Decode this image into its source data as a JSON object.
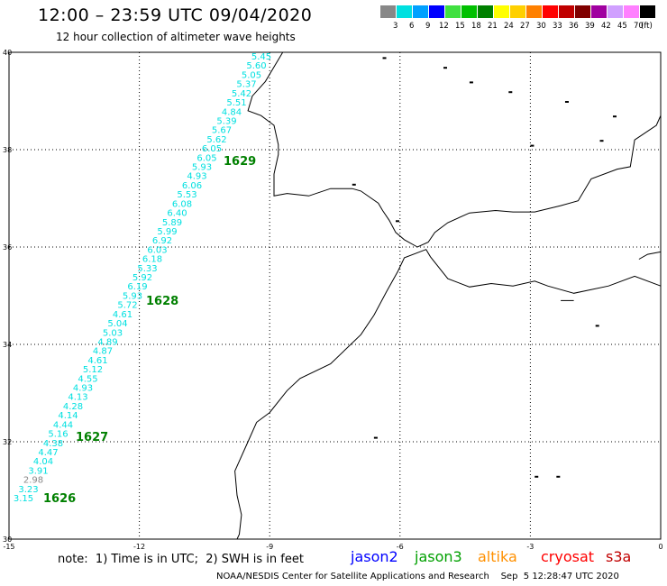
{
  "header": {
    "title": "12:00 – 23:59 UTC 09/04/2020",
    "subtitle": "12 hour collection of altimeter wave heights"
  },
  "legend": {
    "unit": "(ft)",
    "bins": [
      {
        "label": "3",
        "color": "#888888"
      },
      {
        "label": "6",
        "color": "#00e0e0"
      },
      {
        "label": "9",
        "color": "#00a0ff"
      },
      {
        "label": "12",
        "color": "#0000ff"
      },
      {
        "label": "15",
        "color": "#40e040"
      },
      {
        "label": "18",
        "color": "#00c000"
      },
      {
        "label": "21",
        "color": "#008000"
      },
      {
        "label": "24",
        "color": "#ffff00"
      },
      {
        "label": "27",
        "color": "#ffd000"
      },
      {
        "label": "30",
        "color": "#ff8000"
      },
      {
        "label": "33",
        "color": "#ff0000"
      },
      {
        "label": "36",
        "color": "#c00000"
      },
      {
        "label": "39",
        "color": "#800000"
      },
      {
        "label": "42",
        "color": "#a000a0"
      },
      {
        "label": "45",
        "color": "#d0a0ff"
      },
      {
        "label": "70",
        "color": "#ff80ff"
      },
      {
        "label": "",
        "color": "#000000"
      }
    ]
  },
  "map": {
    "lon_range": [
      -15,
      0
    ],
    "lat_range": [
      30,
      40
    ],
    "x_ticks": [
      "-15",
      "-12",
      "-9",
      "-6",
      "-3",
      "0"
    ],
    "y_ticks": [
      "40",
      "38",
      "36",
      "34",
      "32",
      "30"
    ],
    "wave_heights": [
      {
        "v": "5.45",
        "c": "#00e0e0"
      },
      {
        "v": "5.60",
        "c": "#00e0e0"
      },
      {
        "v": "5.05",
        "c": "#00e0e0"
      },
      {
        "v": "5.37",
        "c": "#00e0e0"
      },
      {
        "v": "5.42",
        "c": "#00e0e0"
      },
      {
        "v": "5.51",
        "c": "#00e0e0"
      },
      {
        "v": "4.84",
        "c": "#00e0e0"
      },
      {
        "v": "5.39",
        "c": "#00e0e0"
      },
      {
        "v": "5.67",
        "c": "#00e0e0"
      },
      {
        "v": "5.62",
        "c": "#00e0e0"
      },
      {
        "v": "6.05",
        "c": "#00e0e0"
      },
      {
        "v": "6.05",
        "c": "#00e0e0"
      },
      {
        "v": "5.93",
        "c": "#00e0e0"
      },
      {
        "v": "4.93",
        "c": "#00e0e0"
      },
      {
        "v": "6.06",
        "c": "#00e0e0"
      },
      {
        "v": "5.53",
        "c": "#00e0e0"
      },
      {
        "v": "6.08",
        "c": "#00e0e0"
      },
      {
        "v": "6.40",
        "c": "#00e0e0"
      },
      {
        "v": "5.89",
        "c": "#00e0e0"
      },
      {
        "v": "5.99",
        "c": "#00e0e0"
      },
      {
        "v": "6.92",
        "c": "#00e0e0"
      },
      {
        "v": "6.03",
        "c": "#00e0e0"
      },
      {
        "v": "6.18",
        "c": "#00e0e0"
      },
      {
        "v": "5.33",
        "c": "#00e0e0"
      },
      {
        "v": "5.92",
        "c": "#00e0e0"
      },
      {
        "v": "6.19",
        "c": "#00e0e0"
      },
      {
        "v": "5.93",
        "c": "#00e0e0"
      },
      {
        "v": "5.72",
        "c": "#00e0e0"
      },
      {
        "v": "4.61",
        "c": "#00e0e0"
      },
      {
        "v": "5.04",
        "c": "#00e0e0"
      },
      {
        "v": "5.03",
        "c": "#00e0e0"
      },
      {
        "v": "4.89",
        "c": "#00e0e0"
      },
      {
        "v": "4.87",
        "c": "#00e0e0"
      },
      {
        "v": "4.61",
        "c": "#00e0e0"
      },
      {
        "v": "5.12",
        "c": "#00e0e0"
      },
      {
        "v": "4.55",
        "c": "#00e0e0"
      },
      {
        "v": "4.93",
        "c": "#00e0e0"
      },
      {
        "v": "4.13",
        "c": "#00e0e0"
      },
      {
        "v": "4.28",
        "c": "#00e0e0"
      },
      {
        "v": "4.14",
        "c": "#00e0e0"
      },
      {
        "v": "4.44",
        "c": "#00e0e0"
      },
      {
        "v": "5.16",
        "c": "#00e0e0"
      },
      {
        "v": "4.38",
        "c": "#00e0e0"
      },
      {
        "v": "4.47",
        "c": "#00e0e0"
      },
      {
        "v": "4.04",
        "c": "#00e0e0"
      },
      {
        "v": "3.91",
        "c": "#00e0e0"
      },
      {
        "v": "2.98",
        "c": "#888888"
      },
      {
        "v": "3.23",
        "c": "#00e0e0"
      },
      {
        "v": "3.15",
        "c": "#00e0e0"
      }
    ],
    "pass_labels": [
      "1629",
      "1628",
      "1627",
      "1626"
    ]
  },
  "footer": {
    "note": "note:  1) Time is in UTC;  2) SWH is in feet",
    "satellites": [
      {
        "name": "jason2",
        "color": "#0000ff"
      },
      {
        "name": "jason3",
        "color": "#00a000"
      },
      {
        "name": "altika",
        "color": "#ff9000"
      },
      {
        "name": "cryosat",
        "color": "#ff0000"
      },
      {
        "name": "s3a",
        "color": "#c00000"
      }
    ],
    "credit": "NOAA/NESDIS Center for Satellite Applications and Research    Sep  5 12:28:47 UTC 2020"
  }
}
